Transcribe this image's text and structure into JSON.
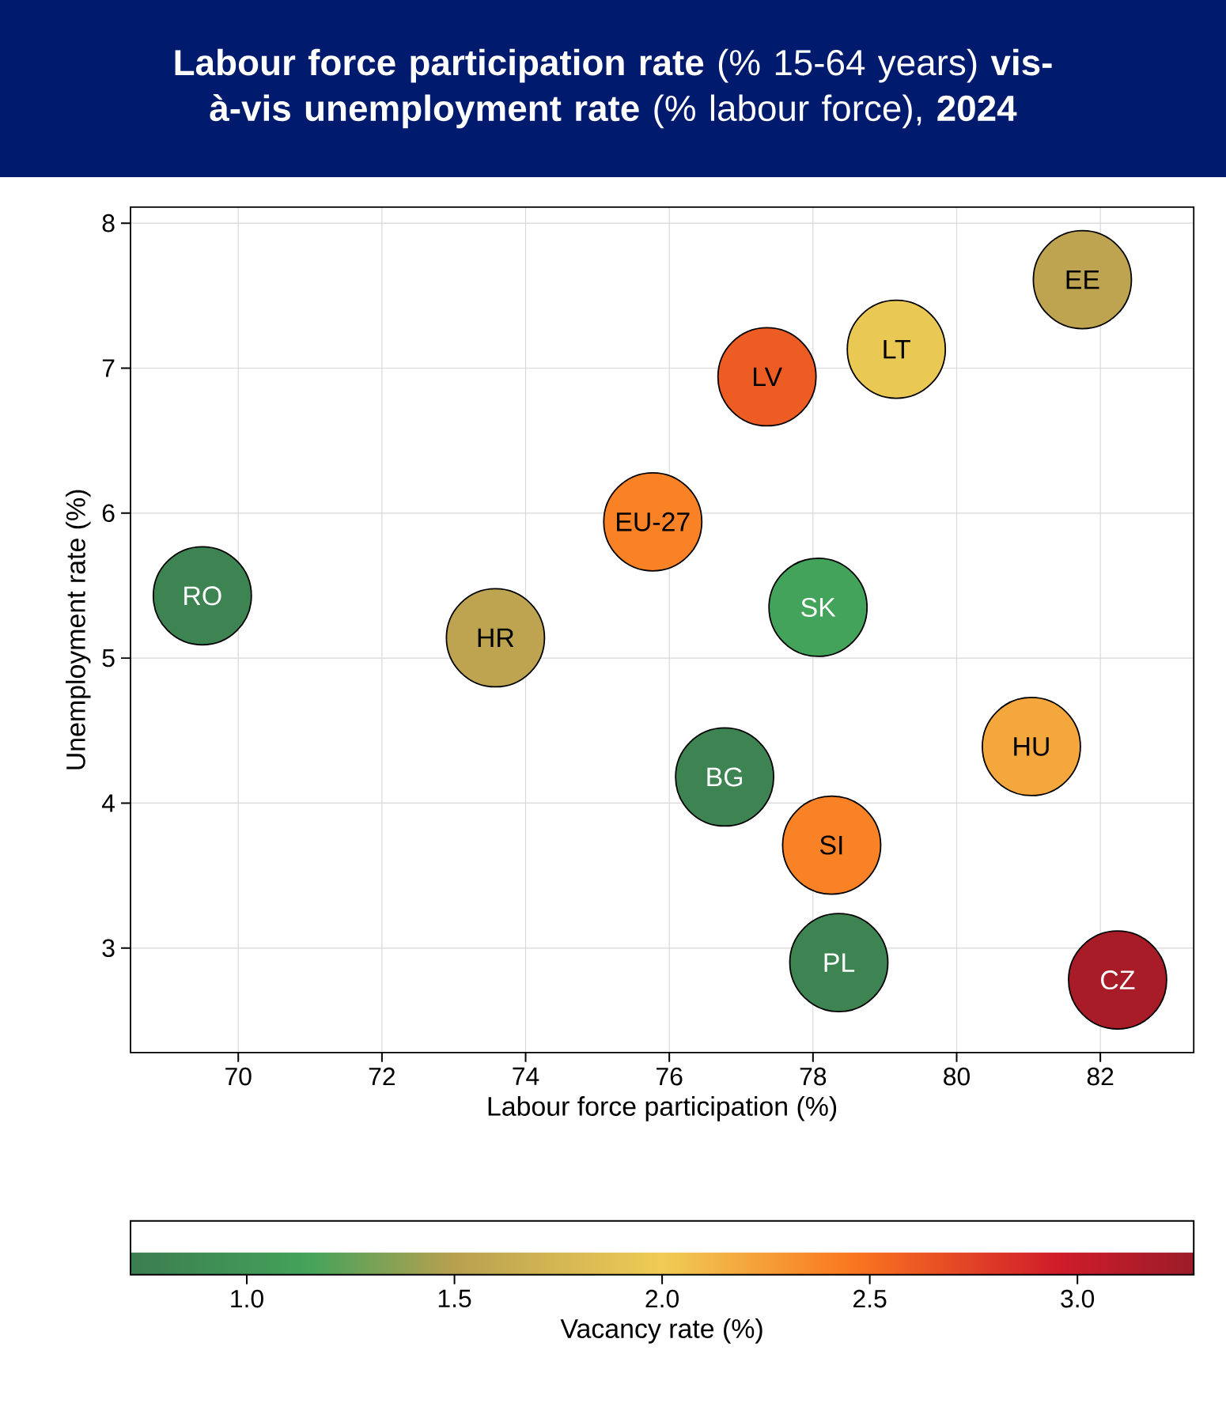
{
  "chart_data": {
    "type": "scatter",
    "title": "**Labour force participation rate** (% 15-64 years) **vis-à-vis unemployment rate** (% labour force), **2024**",
    "xlabel": "Labour force participation (%)",
    "ylabel": "Unemployment rate (%)",
    "clabel": "Vacancy rate (%)",
    "x": [
      69.5,
      73.58,
      75.77,
      81.75,
      79.16,
      77.36,
      78.07,
      81.04,
      76.77,
      78.26,
      78.36,
      82.24
    ],
    "values": [
      5.43,
      5.14,
      5.94,
      7.61,
      7.13,
      6.94,
      5.35,
      4.39,
      4.18,
      3.71,
      2.9,
      2.78
    ],
    "cvalues": [
      0.8,
      1.55,
      2.4,
      1.55,
      1.95,
      2.6,
      1.15,
      2.2,
      0.8,
      2.4,
      0.8,
      3.2
    ],
    "annotations": [
      {
        "text": "RO",
        "x": 69.5,
        "y": 5.43
      },
      {
        "text": "HR",
        "x": 73.58,
        "y": 5.14
      },
      {
        "text": "EU-27",
        "x": 75.77,
        "y": 5.94
      },
      {
        "text": "EE",
        "x": 81.75,
        "y": 7.61
      },
      {
        "text": "LT",
        "x": 79.16,
        "y": 7.13
      },
      {
        "text": "LV",
        "x": 77.36,
        "y": 6.94
      },
      {
        "text": "SK",
        "x": 78.07,
        "y": 5.35
      },
      {
        "text": "HU",
        "x": 81.04,
        "y": 4.39
      },
      {
        "text": "BG",
        "x": 76.77,
        "y": 4.18
      },
      {
        "text": "SI",
        "x": 78.26,
        "y": 3.71
      },
      {
        "text": "PL",
        "x": 78.36,
        "y": 2.9
      },
      {
        "text": "CZ",
        "x": 82.24,
        "y": 2.78
      }
    ],
    "xlim": [
      68.5,
      83.3
    ],
    "ylim": [
      2.28,
      8.11
    ],
    "xticks": [
      70,
      72,
      74,
      76,
      78,
      80,
      82
    ],
    "yticks": [
      3,
      4,
      5,
      6,
      7,
      8
    ],
    "clim": [
      0.72,
      3.28
    ],
    "cticks": [
      {
        "value": 1,
        "label": "1.0"
      },
      {
        "value": 1.5,
        "label": "1.5"
      },
      {
        "value": 2,
        "label": "2.0"
      },
      {
        "value": 2.5,
        "label": "2.5"
      },
      {
        "value": 3,
        "label": "3.0"
      }
    ],
    "grid": true,
    "marker": "circle"
  }
}
